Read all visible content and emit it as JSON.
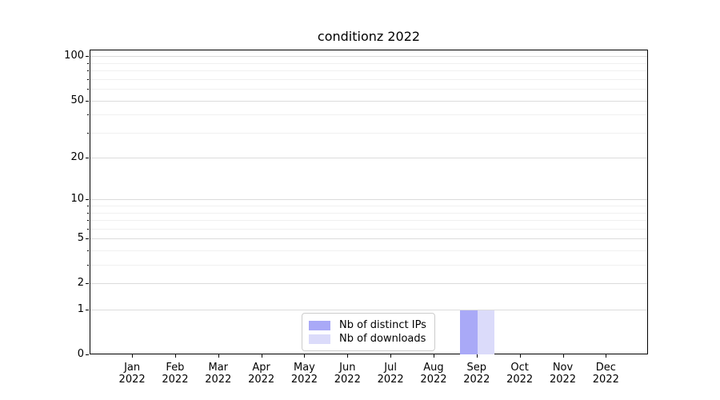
{
  "chart_data": {
    "type": "bar",
    "title": "conditionz 2022",
    "x_categories": [
      "Jan",
      "Feb",
      "Mar",
      "Apr",
      "May",
      "Jun",
      "Jul",
      "Aug",
      "Sep",
      "Oct",
      "Nov",
      "Dec"
    ],
    "x_year": "2022",
    "series": [
      {
        "name": "Nb of distinct IPs",
        "color": "#a9a9f7",
        "values": [
          0,
          0,
          0,
          0,
          0,
          0,
          0,
          0,
          1,
          0,
          0,
          0
        ]
      },
      {
        "name": "Nb of downloads",
        "color": "#dbdbfa",
        "values": [
          0,
          0,
          0,
          0,
          0,
          0,
          0,
          0,
          1,
          0,
          0,
          0
        ]
      }
    ],
    "y_scale": "log1p",
    "y_major_ticks": [
      0,
      1,
      2,
      5,
      10,
      20,
      50,
      100
    ],
    "y_minor_ticks": [
      3,
      4,
      6,
      7,
      8,
      9,
      30,
      40,
      60,
      70,
      80,
      90
    ],
    "ylim": [
      0,
      110
    ],
    "grid": true,
    "legend_position": "lower center",
    "axis_color": "#000000",
    "grid_major_color": "#dcdcdc",
    "grid_minor_color": "#f0f0f0"
  }
}
